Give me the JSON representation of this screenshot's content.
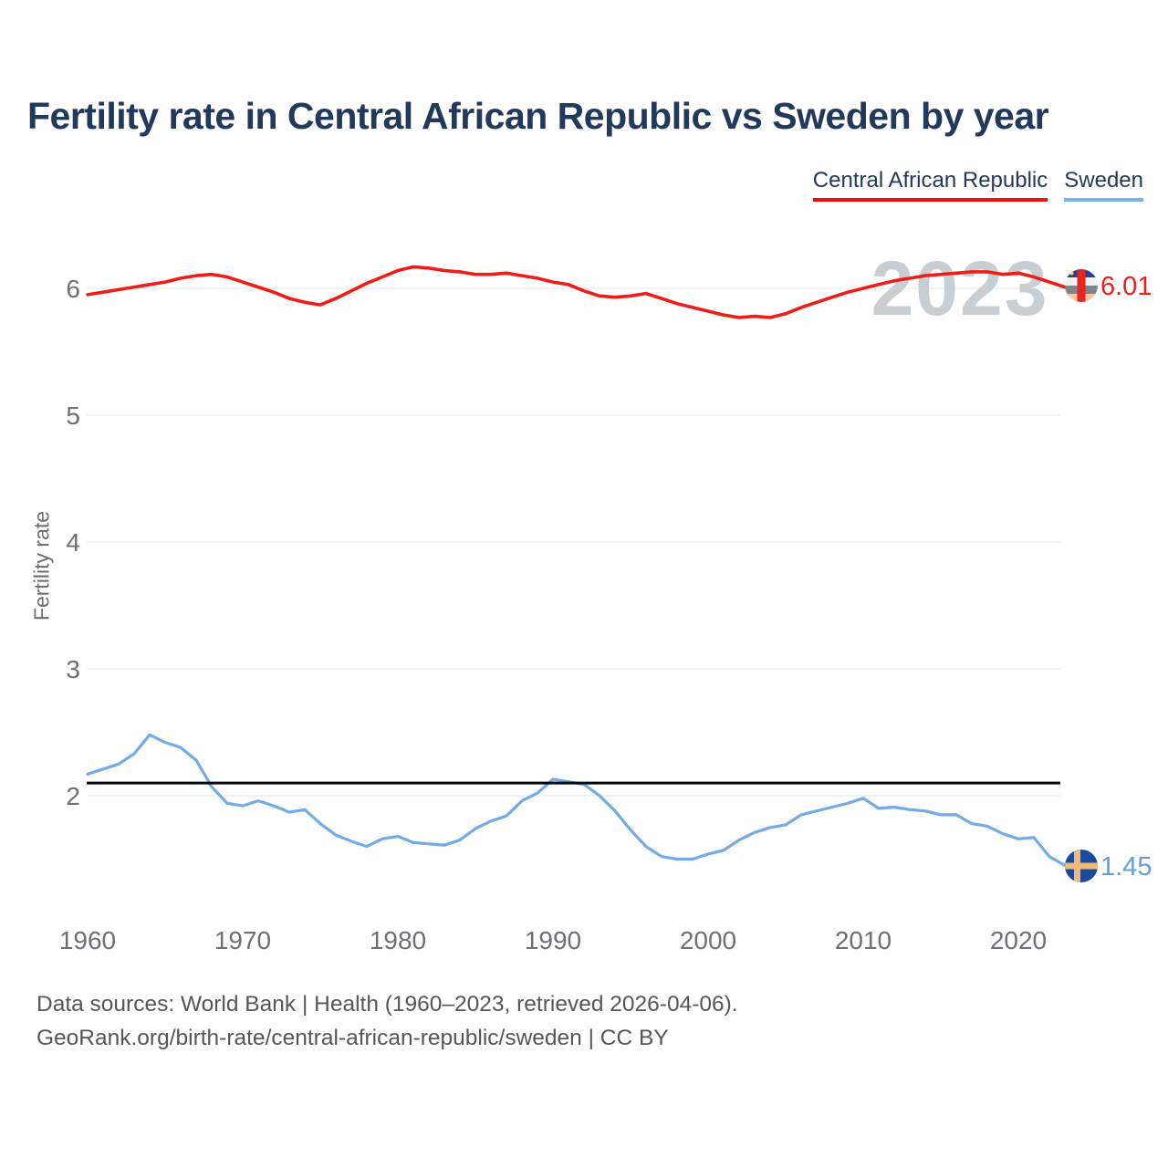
{
  "title": "Fertility rate in Central African Republic vs Sweden by year",
  "legend": {
    "items": [
      {
        "label": "Central African Republic",
        "underline_color": "#f60f0f"
      },
      {
        "label": "Sweden",
        "underline_color": "#7db3e8"
      }
    ]
  },
  "watermark": "2023",
  "y_axis_title": "Fertility rate",
  "endpoints": {
    "central_african_republic": {
      "value_label": "6.01",
      "color": "#ee1d18"
    },
    "sweden": {
      "value_label": "1.45",
      "color": "#5f9fd9"
    }
  },
  "footer": {
    "line1": "Data sources: World Bank | Health (1960–2023, retrieved 2026-04-06).",
    "line2": "GeoRank.org/birth-rate/central-african-republic/sweden | CC BY"
  },
  "colors": {
    "title_navy": "#22395b",
    "car_line": "#ee1d18",
    "sweden_line": "#72abe6",
    "gridline": "#e9e9e9",
    "reference_line": "#05070d",
    "tick_text": "#6d7073",
    "watermark_gray": "#c9ced3"
  },
  "chart_data": {
    "type": "line",
    "title": "Fertility rate in Central African Republic vs Sweden by year",
    "xlabel": "",
    "ylabel": "Fertility rate",
    "grid": true,
    "legend_position": "top-right",
    "xticks": [
      1960,
      1970,
      1980,
      1990,
      2000,
      2010,
      2020
    ],
    "yticks": [
      2,
      3,
      4,
      5,
      6
    ],
    "ylim": [
      1.35,
      6.35
    ],
    "xlim": [
      1960,
      2023
    ],
    "reference_line": {
      "value": 2.1,
      "color": "#05070d"
    },
    "x": [
      1960,
      1961,
      1962,
      1963,
      1964,
      1965,
      1966,
      1967,
      1968,
      1969,
      1970,
      1971,
      1972,
      1973,
      1974,
      1975,
      1976,
      1977,
      1978,
      1979,
      1980,
      1981,
      1982,
      1983,
      1984,
      1985,
      1986,
      1987,
      1988,
      1989,
      1990,
      1991,
      1992,
      1993,
      1994,
      1995,
      1996,
      1997,
      1998,
      1999,
      2000,
      2001,
      2002,
      2003,
      2004,
      2005,
      2006,
      2007,
      2008,
      2009,
      2010,
      2011,
      2012,
      2013,
      2014,
      2015,
      2016,
      2017,
      2018,
      2019,
      2020,
      2021,
      2022,
      2023
    ],
    "series": [
      {
        "name": "Central African Republic",
        "color": "#ee1d18",
        "end_value": 6.01,
        "values": [
          5.95,
          5.97,
          5.99,
          6.01,
          6.03,
          6.05,
          6.08,
          6.1,
          6.11,
          6.09,
          6.05,
          6.01,
          5.97,
          5.92,
          5.89,
          5.87,
          5.92,
          5.98,
          6.04,
          6.09,
          6.14,
          6.17,
          6.16,
          6.14,
          6.13,
          6.11,
          6.11,
          6.12,
          6.1,
          6.08,
          6.05,
          6.03,
          5.98,
          5.94,
          5.93,
          5.94,
          5.96,
          5.92,
          5.88,
          5.85,
          5.82,
          5.79,
          5.77,
          5.78,
          5.77,
          5.8,
          5.85,
          5.89,
          5.93,
          5.97,
          6.0,
          6.03,
          6.06,
          6.08,
          6.1,
          6.11,
          6.12,
          6.13,
          6.13,
          6.11,
          6.12,
          6.09,
          6.05,
          6.01
        ]
      },
      {
        "name": "Sweden",
        "color": "#72abe6",
        "end_value": 1.45,
        "values": [
          2.17,
          2.21,
          2.25,
          2.33,
          2.48,
          2.42,
          2.38,
          2.28,
          2.07,
          1.94,
          1.92,
          1.96,
          1.92,
          1.87,
          1.89,
          1.78,
          1.69,
          1.64,
          1.6,
          1.66,
          1.68,
          1.63,
          1.62,
          1.61,
          1.65,
          1.74,
          1.8,
          1.84,
          1.96,
          2.02,
          2.13,
          2.11,
          2.09,
          2.0,
          1.88,
          1.73,
          1.6,
          1.52,
          1.5,
          1.5,
          1.54,
          1.57,
          1.65,
          1.71,
          1.75,
          1.77,
          1.85,
          1.88,
          1.91,
          1.94,
          1.98,
          1.9,
          1.91,
          1.89,
          1.88,
          1.85,
          1.85,
          1.78,
          1.76,
          1.7,
          1.66,
          1.67,
          1.52,
          1.45
        ]
      }
    ]
  }
}
